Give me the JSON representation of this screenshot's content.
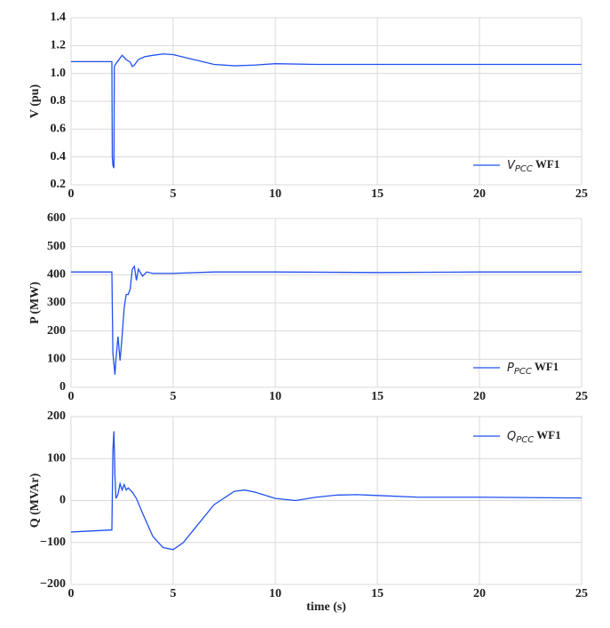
{
  "chart_data": [
    {
      "type": "line",
      "ylabel": "V (pu)",
      "legend": "lower right",
      "grid": true,
      "xlim": [
        0,
        25
      ],
      "xticks": [
        0,
        5,
        10,
        15,
        20,
        25
      ],
      "ylim": [
        0.2,
        1.4
      ],
      "yticks": [
        0.2,
        0.4,
        0.6,
        0.8,
        {
          "value": 1,
          "label": "1.0"
        },
        1.2,
        1.4
      ],
      "x": [
        0,
        2.0,
        2.02,
        2.05,
        2.1,
        2.12,
        2.2,
        2.3,
        2.5,
        2.7,
        2.9,
        3.0,
        3.1,
        3.3,
        3.6,
        4,
        4.5,
        5,
        6,
        7,
        8,
        9,
        10,
        12,
        15,
        20,
        25
      ],
      "series": [
        {
          "name": "VPCC WF1",
          "color": "#2050f0",
          "values": [
            1.085,
            1.085,
            0.4,
            0.34,
            0.32,
            1.05,
            1.07,
            1.09,
            1.13,
            1.1,
            1.08,
            1.05,
            1.06,
            1.1,
            1.12,
            1.13,
            1.14,
            1.135,
            1.1,
            1.065,
            1.055,
            1.06,
            1.07,
            1.065,
            1.065,
            1.065,
            1.065
          ]
        }
      ]
    },
    {
      "type": "line",
      "ylabel": "P (MW)",
      "legend": "lower right",
      "grid": true,
      "xlim": [
        0,
        25
      ],
      "xticks": [
        0,
        5,
        10,
        15,
        20,
        25
      ],
      "ylim": [
        0,
        600
      ],
      "yticks": [
        0,
        100,
        200,
        300,
        400,
        500,
        600
      ],
      "x": [
        0,
        2.0,
        2.05,
        2.15,
        2.2,
        2.3,
        2.4,
        2.5,
        2.6,
        2.7,
        2.8,
        2.9,
        3.0,
        3.1,
        3.2,
        3.3,
        3.5,
        3.7,
        4,
        4.5,
        5,
        7,
        10,
        15,
        20,
        25
      ],
      "series": [
        {
          "name": "PPCC WF1",
          "color": "#2050f0",
          "values": [
            410,
            410,
            120,
            45,
            100,
            180,
            95,
            180,
            280,
            330,
            330,
            350,
            420,
            430,
            380,
            420,
            395,
            410,
            405,
            405,
            405,
            410,
            410,
            408,
            410,
            410
          ]
        }
      ]
    },
    {
      "type": "line",
      "ylabel": "Q (MVAr)",
      "xlabel": "time (s)",
      "legend": "upper right",
      "grid": true,
      "xlim": [
        0,
        25
      ],
      "xticks": [
        0,
        5,
        10,
        15,
        20,
        25
      ],
      "ylim": [
        -200,
        200
      ],
      "yticks": [
        {
          "value": -200,
          "label": "−200"
        },
        {
          "value": -100,
          "label": "−100"
        },
        0,
        100,
        200
      ],
      "x": [
        0,
        2.0,
        2.05,
        2.1,
        2.15,
        2.2,
        2.3,
        2.4,
        2.5,
        2.6,
        2.7,
        2.8,
        3.0,
        3.2,
        3.5,
        4,
        4.5,
        5,
        5.5,
        6,
        7,
        8,
        8.5,
        9,
        10,
        11,
        12,
        13,
        14,
        15,
        17,
        20,
        25
      ],
      "series": [
        {
          "name": "QPCC WF1",
          "color": "#2050f0",
          "values": [
            -75,
            -70,
            120,
            165,
            60,
            5,
            15,
            40,
            25,
            38,
            25,
            30,
            20,
            5,
            -30,
            -85,
            -112,
            -117,
            -100,
            -70,
            -10,
            22,
            25,
            20,
            5,
            0,
            8,
            13,
            14,
            12,
            8,
            8,
            6
          ]
        }
      ]
    }
  ]
}
